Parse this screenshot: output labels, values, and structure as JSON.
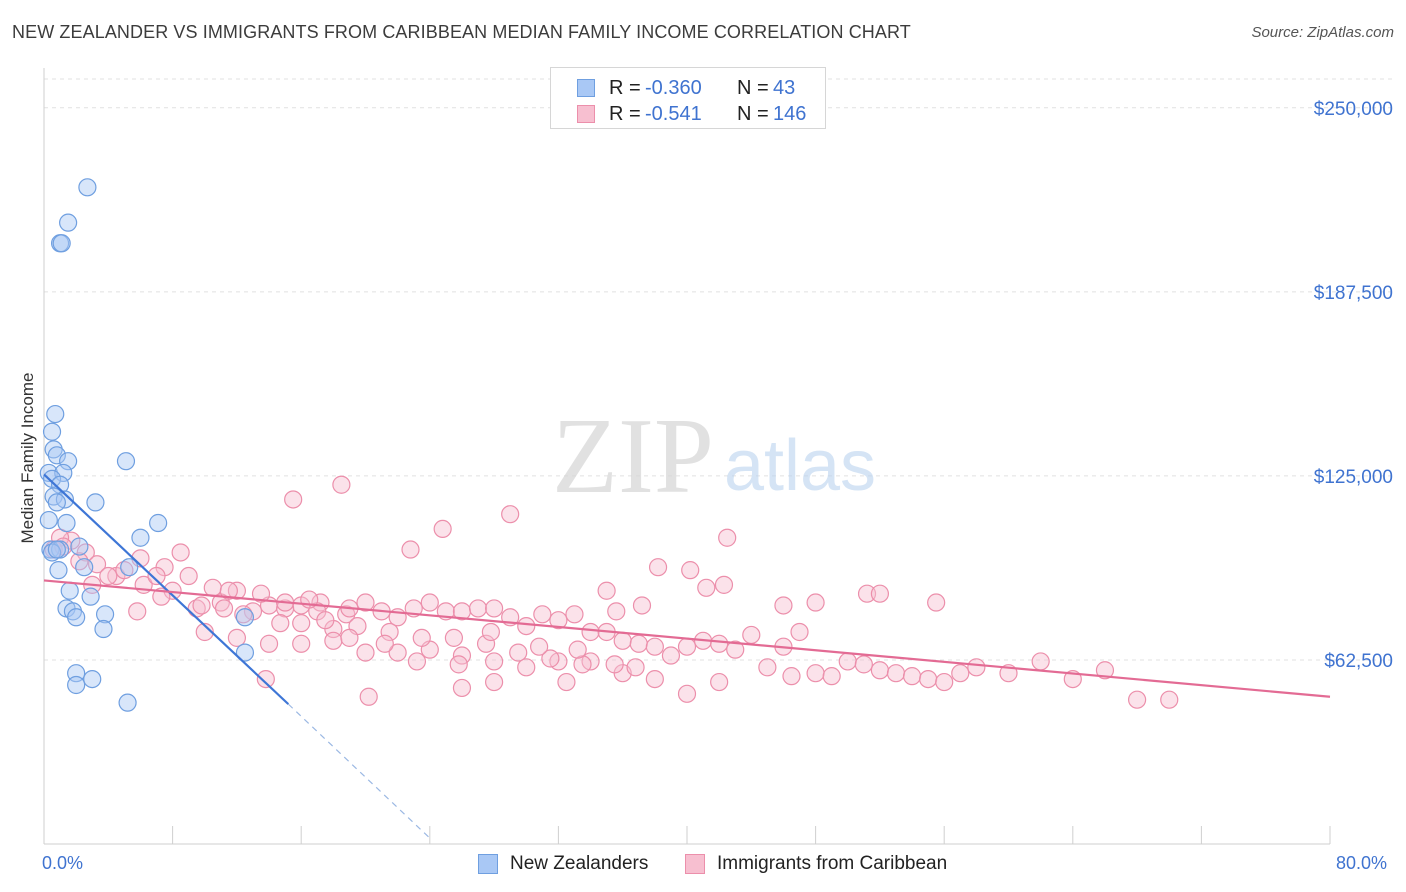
{
  "title": "NEW ZEALANDER VS IMMIGRANTS FROM CARIBBEAN MEDIAN FAMILY INCOME CORRELATION CHART",
  "source": "Source: ZipAtlas.com",
  "watermark": {
    "zip": "ZIP",
    "atlas": "atlas"
  },
  "colors": {
    "blue_fill": "#a9c8f5",
    "blue_stroke": "#6f9fe0",
    "blue_line": "#3e76d6",
    "pink_fill": "#f7bfd0",
    "pink_stroke": "#ec8fab",
    "pink_line": "#e36b94",
    "axis_text": "#3f73d0"
  },
  "legend": {
    "rows": [
      {
        "r_label": "R =",
        "r_value": "-0.360",
        "n_label": "N =",
        "n_value": "43"
      },
      {
        "r_label": "R =",
        "r_value": "-0.541",
        "n_label": "N =",
        "n_value": "146"
      }
    ]
  },
  "bottom_legend": {
    "series1": "New Zealanders",
    "series2": "Immigrants from Caribbean"
  },
  "x_axis": {
    "min_label": "0.0%",
    "max_label": "80.0%"
  },
  "chart_data": {
    "type": "scatter",
    "title": "NEW ZEALANDER VS IMMIGRANTS FROM CARIBBEAN MEDIAN FAMILY INCOME CORRELATION CHART",
    "xlabel": "",
    "ylabel": "Median Family Income",
    "xlim": [
      0,
      80
    ],
    "ylim": [
      0,
      262500
    ],
    "y_ticks": [
      {
        "value": 62500,
        "label": "$62,500"
      },
      {
        "value": 125000,
        "label": "$125,000"
      },
      {
        "value": 187500,
        "label": "$187,500"
      },
      {
        "value": 250000,
        "label": "$250,000"
      }
    ],
    "series": [
      {
        "name": "New Zealanders",
        "r": -0.36,
        "n": 43,
        "trend": {
          "x_start": 0,
          "y_start": 125500,
          "x_solid_end": 15.2,
          "y_solid_end": 47500,
          "x_dash_end": 24,
          "y_dash_end": 2000
        },
        "points": [
          [
            2.7,
            223000
          ],
          [
            1.5,
            211000
          ],
          [
            1.0,
            204000
          ],
          [
            1.1,
            204000
          ],
          [
            0.7,
            146000
          ],
          [
            0.5,
            140000
          ],
          [
            0.6,
            134000
          ],
          [
            0.8,
            132000
          ],
          [
            1.5,
            130000
          ],
          [
            5.1,
            130000
          ],
          [
            0.3,
            126000
          ],
          [
            1.2,
            126000
          ],
          [
            0.5,
            124000
          ],
          [
            1.0,
            122000
          ],
          [
            0.6,
            118000
          ],
          [
            1.3,
            117000
          ],
          [
            3.2,
            116000
          ],
          [
            0.8,
            116000
          ],
          [
            0.3,
            110000
          ],
          [
            1.4,
            109000
          ],
          [
            7.1,
            109000
          ],
          [
            6.0,
            104000
          ],
          [
            2.2,
            101000
          ],
          [
            0.4,
            100000
          ],
          [
            1.0,
            100000
          ],
          [
            0.5,
            99000
          ],
          [
            2.5,
            94000
          ],
          [
            5.3,
            94000
          ],
          [
            0.9,
            93000
          ],
          [
            1.6,
            86000
          ],
          [
            2.9,
            84000
          ],
          [
            1.4,
            80000
          ],
          [
            1.8,
            79000
          ],
          [
            3.8,
            78000
          ],
          [
            2.0,
            77000
          ],
          [
            12.5,
            77000
          ],
          [
            3.7,
            73000
          ],
          [
            12.5,
            65000
          ],
          [
            2.0,
            58000
          ],
          [
            3.0,
            56000
          ],
          [
            2.0,
            54000
          ],
          [
            5.2,
            48000
          ],
          [
            0.8,
            100000
          ]
        ]
      },
      {
        "name": "Immigrants from Caribbean",
        "r": -0.541,
        "n": 146,
        "trend": {
          "x_start": 0,
          "y_start": 89500,
          "x_end": 80,
          "y_end": 50000
        },
        "points": [
          [
            18.5,
            122000
          ],
          [
            15.5,
            117000
          ],
          [
            29.0,
            112000
          ],
          [
            24.8,
            107000
          ],
          [
            42.5,
            104000
          ],
          [
            22.8,
            100000
          ],
          [
            38.2,
            94000
          ],
          [
            40.2,
            93000
          ],
          [
            51.2,
            85000
          ],
          [
            48.0,
            82000
          ],
          [
            37.2,
            81000
          ],
          [
            16.0,
            81000
          ],
          [
            35.6,
            79000
          ],
          [
            18.8,
            78000
          ],
          [
            41.2,
            87000
          ],
          [
            42.3,
            88000
          ],
          [
            46.0,
            81000
          ],
          [
            55.5,
            82000
          ],
          [
            35.0,
            86000
          ],
          [
            17.2,
            82000
          ],
          [
            5.8,
            79000
          ],
          [
            10.5,
            87000
          ],
          [
            9.0,
            91000
          ],
          [
            7.5,
            94000
          ],
          [
            6.0,
            97000
          ],
          [
            4.5,
            91000
          ],
          [
            3.3,
            95000
          ],
          [
            2.6,
            99000
          ],
          [
            1.7,
            103000
          ],
          [
            1.0,
            104000
          ],
          [
            0.6,
            100000
          ],
          [
            1.2,
            101000
          ],
          [
            2.2,
            96000
          ],
          [
            3.0,
            88000
          ],
          [
            4.0,
            91000
          ],
          [
            5.0,
            93000
          ],
          [
            6.2,
            88000
          ],
          [
            7.0,
            91000
          ],
          [
            8.0,
            86000
          ],
          [
            9.5,
            80000
          ],
          [
            11.0,
            82000
          ],
          [
            12.0,
            86000
          ],
          [
            13.0,
            79000
          ],
          [
            14.0,
            81000
          ],
          [
            15.0,
            80000
          ],
          [
            16.0,
            75000
          ],
          [
            17.0,
            79000
          ],
          [
            18.0,
            73000
          ],
          [
            19.0,
            80000
          ],
          [
            20.0,
            82000
          ],
          [
            21.0,
            79000
          ],
          [
            22.0,
            77000
          ],
          [
            23.0,
            80000
          ],
          [
            24.0,
            82000
          ],
          [
            25.0,
            79000
          ],
          [
            26.0,
            79000
          ],
          [
            27.0,
            80000
          ],
          [
            28.0,
            80000
          ],
          [
            29.0,
            77000
          ],
          [
            30.0,
            74000
          ],
          [
            31.0,
            78000
          ],
          [
            32.0,
            76000
          ],
          [
            33.0,
            78000
          ],
          [
            34.0,
            72000
          ],
          [
            35.0,
            72000
          ],
          [
            36.0,
            69000
          ],
          [
            37.0,
            68000
          ],
          [
            38.0,
            67000
          ],
          [
            39.0,
            64000
          ],
          [
            40.0,
            67000
          ],
          [
            41.0,
            69000
          ],
          [
            42.0,
            68000
          ],
          [
            43.0,
            66000
          ],
          [
            44.0,
            71000
          ],
          [
            45.0,
            60000
          ],
          [
            46.0,
            67000
          ],
          [
            47.0,
            72000
          ],
          [
            48.0,
            58000
          ],
          [
            49.0,
            57000
          ],
          [
            50.0,
            62000
          ],
          [
            51.0,
            61000
          ],
          [
            52.0,
            59000
          ],
          [
            53.0,
            58000
          ],
          [
            54.0,
            57000
          ],
          [
            55.0,
            56000
          ],
          [
            56.0,
            55000
          ],
          [
            57.0,
            58000
          ],
          [
            58.0,
            60000
          ],
          [
            60.0,
            58000
          ],
          [
            62.0,
            62000
          ],
          [
            64.0,
            56000
          ],
          [
            66.0,
            59000
          ],
          [
            68.0,
            49000
          ],
          [
            70.0,
            49000
          ],
          [
            10.0,
            72000
          ],
          [
            12.0,
            70000
          ],
          [
            14.0,
            68000
          ],
          [
            16.0,
            68000
          ],
          [
            18.0,
            69000
          ],
          [
            20.0,
            65000
          ],
          [
            22.0,
            65000
          ],
          [
            24.0,
            66000
          ],
          [
            26.0,
            64000
          ],
          [
            28.0,
            62000
          ],
          [
            30.0,
            60000
          ],
          [
            32.0,
            62000
          ],
          [
            34.0,
            62000
          ],
          [
            36.0,
            58000
          ],
          [
            38.0,
            56000
          ],
          [
            40.0,
            51000
          ],
          [
            11.5,
            86000
          ],
          [
            13.5,
            85000
          ],
          [
            15.0,
            82000
          ],
          [
            16.5,
            83000
          ],
          [
            17.5,
            76000
          ],
          [
            19.5,
            74000
          ],
          [
            21.5,
            72000
          ],
          [
            23.5,
            70000
          ],
          [
            25.5,
            70000
          ],
          [
            27.5,
            68000
          ],
          [
            29.5,
            65000
          ],
          [
            31.5,
            63000
          ],
          [
            33.5,
            61000
          ],
          [
            35.5,
            61000
          ],
          [
            13.8,
            56000
          ],
          [
            20.2,
            50000
          ],
          [
            26.0,
            53000
          ],
          [
            28.0,
            55000
          ],
          [
            32.5,
            55000
          ],
          [
            42.0,
            55000
          ],
          [
            46.5,
            57000
          ],
          [
            52.0,
            85000
          ],
          [
            8.5,
            99000
          ],
          [
            7.3,
            84000
          ],
          [
            9.8,
            81000
          ],
          [
            11.2,
            80000
          ],
          [
            12.4,
            78000
          ],
          [
            14.7,
            75000
          ],
          [
            19.0,
            70000
          ],
          [
            21.2,
            68000
          ],
          [
            23.2,
            62000
          ],
          [
            25.8,
            61000
          ],
          [
            27.8,
            72000
          ],
          [
            30.8,
            67000
          ],
          [
            33.2,
            66000
          ],
          [
            36.8,
            60000
          ]
        ]
      }
    ]
  }
}
